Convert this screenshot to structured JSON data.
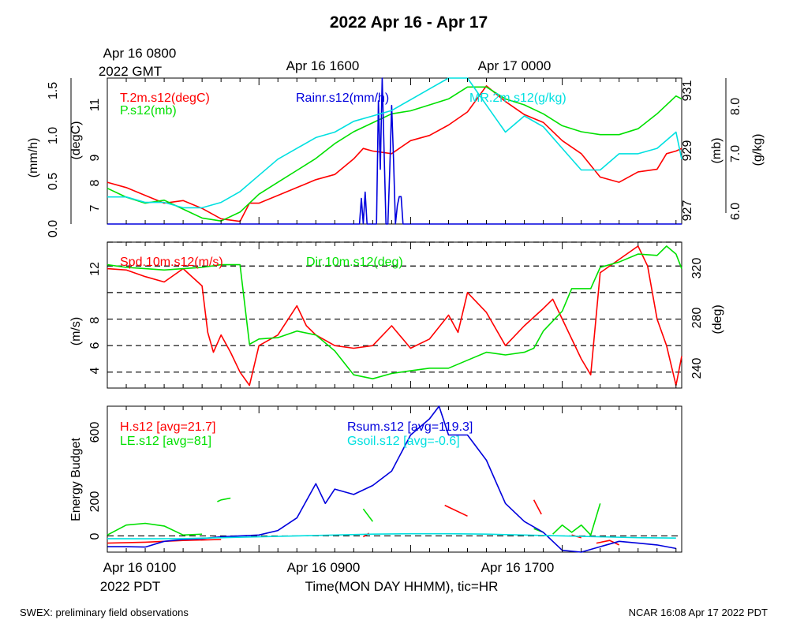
{
  "title": "2022 Apr 16 - Apr 17",
  "top_axis": {
    "first_label_line1": "Apr 16 0800",
    "first_label_line2": "2022 GMT",
    "labels": [
      "Apr 16 1600",
      "Apr 17 0000"
    ]
  },
  "bottom_axis": {
    "first_label_line1": "Apr 16 0100",
    "first_label_line2": "2022 PDT",
    "labels": [
      "Apr 16 0900",
      "Apr 16 1700"
    ],
    "xlabel": "Time(MON DAY HHMM), tic=HR"
  },
  "footer": {
    "left": "SWEX: preliminary field observations",
    "right": "NCAR 16:08 Apr 17 2022 PDT"
  },
  "colors": {
    "red": "#ff0000",
    "green": "#00e000",
    "blue": "#0000dd",
    "cyan": "#00e0e0"
  },
  "chart_data": [
    {
      "type": "line",
      "panel": "met",
      "x_unit": "hours since Apr 16 0100 PDT",
      "xlim": [
        0,
        30.3
      ],
      "axes": {
        "rain": {
          "label": "(mm/h)",
          "lim": [
            0,
            1.6
          ],
          "ticks": [
            "0.0",
            "0.5",
            "1.0",
            "1.5"
          ]
        },
        "temp": {
          "label": "(degC)",
          "lim": [
            6.4,
            12.0
          ],
          "ticks": [
            "7",
            "8",
            "9",
            "11"
          ]
        },
        "pres": {
          "label": "(mb)",
          "lim": [
            926.4,
            931.3
          ],
          "ticks": [
            "927",
            "929",
            "931"
          ]
        },
        "mr": {
          "label": "(g/kg)",
          "lim": [
            5.9,
            8.6
          ],
          "ticks": [
            "6.0",
            "7.0",
            "8.0"
          ]
        }
      },
      "series": [
        {
          "name": "T.2m.s12(degC)",
          "color": "red",
          "axis": "temp",
          "x": [
            0,
            1,
            2,
            3,
            4,
            5,
            6,
            7,
            7.5,
            8,
            9,
            10,
            11,
            12,
            13,
            13.5,
            14,
            15,
            16,
            17,
            18,
            19,
            19.5,
            20,
            21,
            22,
            23,
            24,
            25,
            26,
            27,
            28,
            29,
            29.5,
            30,
            30.3
          ],
          "y": [
            8.0,
            7.8,
            7.5,
            7.2,
            7.3,
            7.0,
            6.6,
            6.5,
            7.2,
            7.2,
            7.5,
            7.8,
            8.1,
            8.3,
            8.9,
            9.3,
            9.2,
            9.1,
            9.6,
            9.8,
            10.2,
            10.7,
            11.2,
            11.7,
            11.1,
            10.6,
            10.3,
            9.6,
            9.1,
            8.2,
            8.0,
            8.4,
            8.5,
            9.1,
            9.2,
            9.3
          ]
        },
        {
          "name": "P.s12(mb)",
          "color": "green",
          "axis": "pres",
          "x": [
            0,
            1,
            2,
            3,
            4,
            5,
            6,
            7,
            8,
            9,
            10,
            11,
            12,
            13,
            14,
            15,
            16,
            17,
            18,
            19,
            20,
            21,
            22,
            23,
            24,
            25,
            26,
            27,
            28,
            29,
            30,
            30.3
          ],
          "y": [
            927.6,
            927.3,
            927.1,
            927.2,
            926.9,
            926.6,
            926.5,
            926.8,
            927.4,
            927.8,
            928.2,
            928.6,
            929.1,
            929.5,
            929.8,
            930.1,
            930.2,
            930.4,
            930.6,
            931.0,
            931.0,
            930.6,
            930.4,
            930.1,
            929.7,
            929.5,
            929.4,
            929.4,
            929.6,
            930.1,
            930.7,
            930.6
          ]
        },
        {
          "name": "Rainr.s12(mm/h)",
          "color": "blue",
          "axis": "rain",
          "x": [
            0,
            13.3,
            13.4,
            13.5,
            13.6,
            13.7,
            14.2,
            14.3,
            14.4,
            14.5,
            14.6,
            14.7,
            14.8,
            14.9,
            15.0,
            15.1,
            15.2,
            15.3,
            15.4,
            15.5,
            15.6,
            16.3,
            30.3
          ],
          "y": [
            0,
            0,
            0.28,
            0,
            0.35,
            0,
            0,
            1.35,
            0.6,
            1.6,
            0.8,
            0,
            0,
            0.6,
            1.3,
            0.7,
            0,
            0.2,
            0.3,
            0.3,
            0,
            0,
            0
          ]
        },
        {
          "name": "MR.2m.s12(g/kg)",
          "color": "cyan",
          "axis": "mr",
          "x": [
            0,
            1,
            2,
            3,
            4,
            5,
            6,
            7,
            8,
            9,
            10,
            11,
            12,
            13,
            14,
            15,
            16,
            17,
            18,
            19,
            20,
            21,
            22,
            23,
            24,
            25,
            26,
            27,
            28,
            29,
            30,
            30.3
          ],
          "y": [
            6.4,
            6.4,
            6.3,
            6.3,
            6.2,
            6.2,
            6.3,
            6.5,
            6.8,
            7.1,
            7.3,
            7.5,
            7.6,
            7.8,
            7.9,
            8.0,
            8.2,
            8.4,
            8.6,
            8.6,
            8.1,
            7.6,
            7.9,
            7.7,
            7.3,
            6.9,
            6.9,
            7.2,
            7.2,
            7.3,
            7.6,
            7.1
          ]
        }
      ]
    },
    {
      "type": "line",
      "panel": "wind",
      "x_unit": "hours since Apr 16 0100 PDT",
      "xlim": [
        0,
        30.3
      ],
      "axes": {
        "spd": {
          "label": "(m/s)",
          "lim": [
            2.8,
            13.8
          ],
          "ticks": [
            "4",
            "6",
            "8",
            "12"
          ]
        },
        "dir": {
          "label": "(deg)",
          "lim": [
            225,
            335
          ],
          "ticks": [
            "240",
            "280",
            "320"
          ]
        }
      },
      "gridlines_spd": [
        4,
        6,
        8,
        10,
        12,
        13.8
      ],
      "series": [
        {
          "name": "Spd.10m.s12(m/s)",
          "color": "red",
          "axis": "spd",
          "x": [
            0,
            1,
            2,
            3,
            4,
            5,
            5.3,
            5.6,
            6,
            6.5,
            7,
            7.5,
            8,
            9,
            10,
            10.5,
            11,
            12,
            13,
            14,
            15,
            16,
            17,
            18,
            18.5,
            19,
            20,
            21,
            22,
            23,
            23.5,
            24,
            25,
            25.5,
            26,
            27,
            28,
            28.5,
            29,
            29.5,
            30,
            30.3
          ],
          "y": [
            11.8,
            11.7,
            11.2,
            10.8,
            11.8,
            10.5,
            7.0,
            5.5,
            6.8,
            5.5,
            4.0,
            3.0,
            6.0,
            6.8,
            9.0,
            7.5,
            6.8,
            6.0,
            5.8,
            6.0,
            7.5,
            5.8,
            6.5,
            8.3,
            7.0,
            10.0,
            8.5,
            6.0,
            7.5,
            8.8,
            9.5,
            8.0,
            5.0,
            3.8,
            11.5,
            12.5,
            13.5,
            12.0,
            8.0,
            6.0,
            3.0,
            5.2
          ]
        },
        {
          "name": "Dir.10m.s12(deg)",
          "color": "green",
          "axis": "dir",
          "x": [
            0,
            1,
            2,
            3,
            4,
            5,
            6,
            7,
            7.5,
            8,
            9,
            10,
            11,
            12,
            13,
            14,
            15,
            16,
            17,
            18,
            19,
            20,
            21,
            22,
            22.5,
            23,
            24,
            24.5,
            25,
            25.5,
            26,
            27,
            28,
            29,
            29.5,
            30,
            30.3
          ],
          "y": [
            318,
            316,
            315,
            314,
            315,
            316,
            318,
            318,
            258,
            262,
            263,
            268,
            265,
            253,
            235,
            232,
            236,
            238,
            240,
            240,
            246,
            252,
            250,
            252,
            255,
            268,
            283,
            300,
            300,
            300,
            316,
            320,
            326,
            325,
            332,
            326,
            315
          ]
        }
      ]
    },
    {
      "type": "line",
      "panel": "energy",
      "x_unit": "hours since Apr 16 0100 PDT",
      "xlim": [
        0,
        30.3
      ],
      "ylabel": "Energy Budget",
      "ylim": [
        -90,
        720
      ],
      "yticks": [
        0,
        200,
        600
      ],
      "zero_line": true,
      "series": [
        {
          "name": "H.s12 [avg=21.7]",
          "color": "red",
          "segments": [
            {
              "x": [
                0,
                2,
                4,
                6
              ],
              "y": [
                -40,
                -35,
                -25,
                -20
              ]
            },
            {
              "x": [
                13.5,
                13.8
              ],
              "y": [
                -5,
                15
              ]
            },
            {
              "x": [
                17.8,
                19
              ],
              "y": [
                170,
                110
              ]
            },
            {
              "x": [
                22.5,
                22.9
              ],
              "y": [
                200,
                120
              ]
            },
            {
              "x": [
                24.5,
                25
              ],
              "y": [
                5,
                -10
              ]
            },
            {
              "x": [
                25.8,
                26.5,
                27
              ],
              "y": [
                -40,
                -25,
                -50
              ]
            }
          ]
        },
        {
          "name": "LE.s12 [avg=81]",
          "color": "green",
          "segments": [
            {
              "x": [
                0,
                1,
                2,
                3,
                4,
                5
              ],
              "y": [
                5,
                60,
                70,
                55,
                5,
                10
              ]
            },
            {
              "x": [
                5.8,
                6,
                6.5
              ],
              "y": [
                190,
                200,
                210
              ]
            },
            {
              "x": [
                13.5,
                14
              ],
              "y": [
                150,
                80
              ]
            },
            {
              "x": [
                22.5,
                23
              ],
              "y": [
                40,
                20
              ]
            },
            {
              "x": [
                23.5,
                24,
                24.5,
                25,
                25.5,
                26
              ],
              "y": [
                10,
                60,
                20,
                60,
                5,
                180
              ]
            }
          ]
        },
        {
          "name": "Rsum.s12 [avg=119.3]",
          "color": "blue",
          "x": [
            0,
            1,
            2,
            3,
            4,
            5,
            6,
            7,
            8,
            9,
            10,
            11,
            11.5,
            12,
            13,
            14,
            15,
            16,
            17,
            17.5,
            18,
            19,
            20,
            21,
            22,
            23,
            24,
            25,
            26,
            27,
            28,
            29,
            30
          ],
          "y": [
            -60,
            -60,
            -62,
            -30,
            -20,
            -15,
            -5,
            0,
            5,
            30,
            100,
            290,
            180,
            260,
            230,
            280,
            360,
            560,
            650,
            720,
            560,
            560,
            420,
            180,
            80,
            20,
            -80,
            -90,
            -60,
            -30,
            -40,
            -50,
            -70
          ]
        },
        {
          "name": "Gsoil.s12 [avg=-0.6]",
          "color": "cyan",
          "x": [
            0,
            2,
            4,
            6,
            8,
            10,
            12,
            14,
            16,
            18,
            20,
            22,
            24,
            26,
            28,
            30
          ],
          "y": [
            -15,
            -16,
            -15,
            -10,
            -5,
            0,
            5,
            10,
            12,
            12,
            10,
            5,
            0,
            -5,
            -10,
            -12
          ]
        }
      ]
    }
  ]
}
